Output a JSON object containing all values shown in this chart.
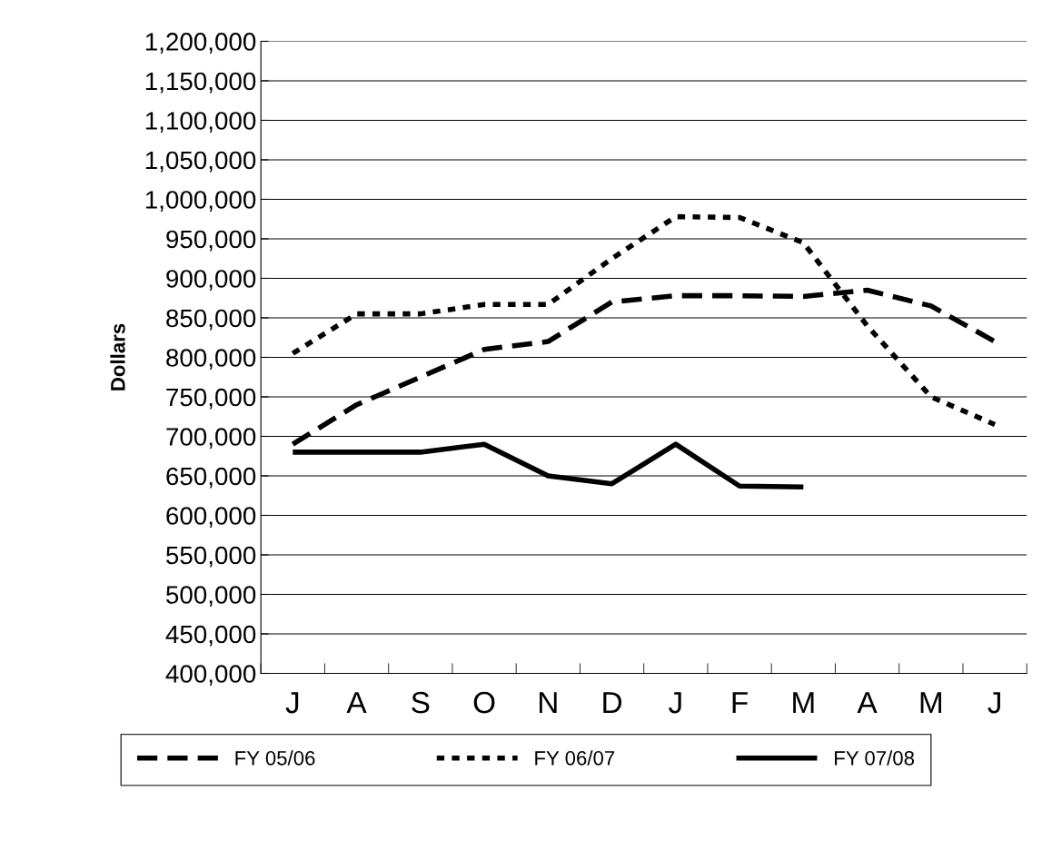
{
  "chart_data": {
    "type": "line",
    "ylabel": "Dollars",
    "categories": [
      "J",
      "A",
      "S",
      "O",
      "N",
      "D",
      "J",
      "F",
      "M",
      "A",
      "M",
      "J"
    ],
    "series": [
      {
        "name": "FY 05/06",
        "color": "#000000",
        "line_style": "dashed",
        "values": [
          690000,
          740000,
          775000,
          810000,
          820000,
          870000,
          878000,
          878000,
          877000,
          885000,
          865000,
          820000
        ]
      },
      {
        "name": "FY 06/07",
        "color": "#000000",
        "line_style": "dotted",
        "values": [
          805000,
          855000,
          855000,
          867000,
          867000,
          925000,
          978000,
          977000,
          945000,
          840000,
          750000,
          715000
        ]
      },
      {
        "name": "FY 07/08",
        "color": "#000000",
        "line_style": "solid",
        "values": [
          680000,
          680000,
          680000,
          690000,
          650000,
          640000,
          690000,
          637000,
          636000,
          null,
          null,
          null
        ]
      }
    ],
    "ylim": [
      400000,
      1200000
    ],
    "yticks": [
      {
        "value": 400000,
        "label": "400,000"
      },
      {
        "value": 450000,
        "label": "450,000"
      },
      {
        "value": 500000,
        "label": "500,000"
      },
      {
        "value": 550000,
        "label": "550,000"
      },
      {
        "value": 600000,
        "label": "600,000"
      },
      {
        "value": 650000,
        "label": "650,000"
      },
      {
        "value": 700000,
        "label": "700,000"
      },
      {
        "value": 750000,
        "label": "750,000"
      },
      {
        "value": 800000,
        "label": "800,000"
      },
      {
        "value": 850000,
        "label": "850,000"
      },
      {
        "value": 900000,
        "label": "900,000"
      },
      {
        "value": 950000,
        "label": "950,000"
      },
      {
        "value": 1000000,
        "label": "1,000,000"
      },
      {
        "value": 1050000,
        "label": "1,050,000"
      },
      {
        "value": 1100000,
        "label": "1,100,000"
      },
      {
        "value": 1150000,
        "label": "1,150,000"
      },
      {
        "value": 1200000,
        "label": "1,200,000"
      }
    ],
    "grid": "y",
    "legend": "bottom",
    "marker": "none"
  }
}
